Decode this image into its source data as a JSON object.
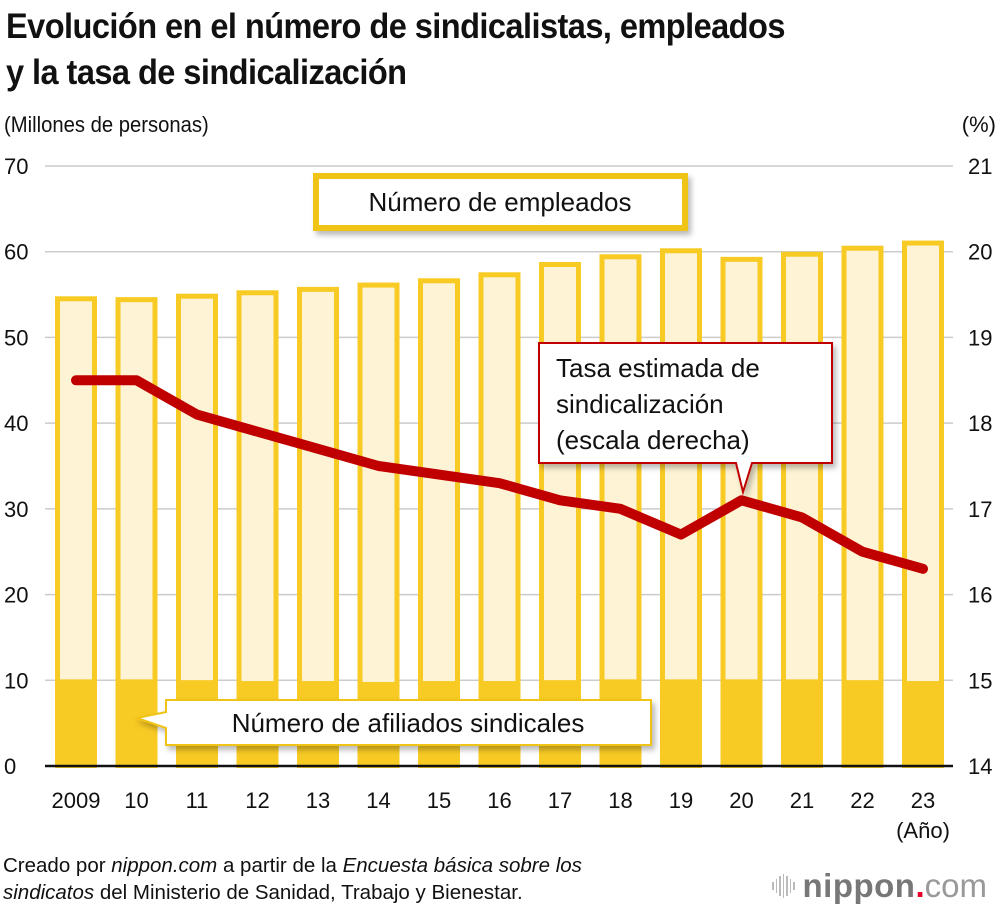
{
  "header": {
    "title_line1": "Evolución en el número de sindicalistas, empleados",
    "title_line2": "y la tasa de sindicalización",
    "left_unit": "(Millones de personas)",
    "right_unit": "(%)"
  },
  "chart_data": {
    "type": "bar+line",
    "title": "Evolución en el número de sindicalistas, empleados y la tasa de sindicalización",
    "xlabel": "(Año)",
    "ylabel_left": "(Millones de personas)",
    "ylabel_right": "(%)",
    "categories": [
      "2009",
      "10",
      "11",
      "12",
      "13",
      "14",
      "15",
      "16",
      "17",
      "18",
      "19",
      "20",
      "21",
      "22",
      "23"
    ],
    "ylim_left": [
      0,
      70
    ],
    "yticks_left": [
      "0",
      "10",
      "20",
      "30",
      "40",
      "50",
      "60",
      "70"
    ],
    "ylim_right": [
      14,
      21
    ],
    "yticks_right": [
      "14",
      "15",
      "16",
      "17",
      "18",
      "19",
      "20",
      "21"
    ],
    "grid": true,
    "series": [
      {
        "name": "Número de empleados",
        "type": "bar",
        "axis": "left",
        "color": "#F8CA24",
        "fill": "#FEF3D4",
        "values": [
          54.8,
          54.7,
          55.1,
          55.5,
          55.9,
          56.4,
          56.9,
          57.6,
          58.8,
          59.7,
          60.4,
          59.4,
          60.0,
          60.7,
          61.3
        ]
      },
      {
        "name": "Número de afiliados sindicales",
        "type": "bar",
        "axis": "left",
        "color": "#F8CA24",
        "values": [
          10.1,
          10.1,
          10.0,
          9.9,
          9.9,
          9.8,
          9.9,
          9.9,
          10.0,
          10.1,
          10.1,
          10.1,
          10.1,
          10.0,
          9.9
        ]
      },
      {
        "name": "Tasa estimada de sindicalización (escala derecha)",
        "type": "line",
        "axis": "right",
        "color": "#C00000",
        "values": [
          18.5,
          18.5,
          18.1,
          17.9,
          17.7,
          17.5,
          17.4,
          17.3,
          17.1,
          17.0,
          16.7,
          17.1,
          16.9,
          16.5,
          16.3
        ]
      }
    ],
    "annotations": {
      "employees_label": "Número de empleados",
      "members_label": "Número de afiliados sindicales",
      "rate_label_lines": [
        "Tasa estimada de",
        "sindicalización",
        "(escala derecha)"
      ]
    }
  },
  "footer": {
    "source_part1": "Creado por ",
    "source_italic1": "nippon.com",
    "source_part2": " a partir de la ",
    "source_italic2": "Encuesta básica sobre los",
    "source_italic3": "sindicatos",
    "source_part3": " del Ministerio de Sanidad, Trabajo y Bienestar.",
    "logo_main": "nippon",
    "logo_dot": ".",
    "logo_tld": "com"
  }
}
